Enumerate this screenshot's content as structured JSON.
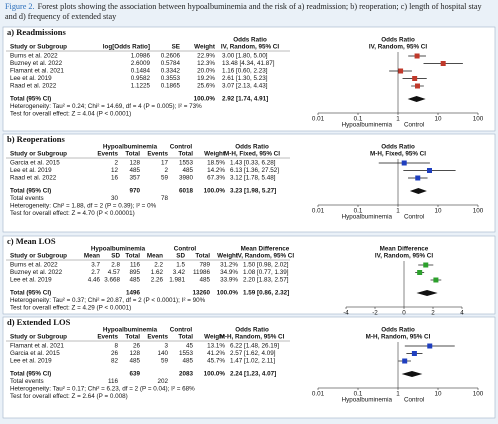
{
  "caption": {
    "label": "Figure 2.",
    "text": "Forest plots showing the association between hypoalbuminemia and the risk of a) readmission; b) reoperation; c) length of hospital stay and d) frequency of extended stay"
  },
  "panels": [
    {
      "title": "a) Readmissions",
      "color": "#c0392b",
      "headers": [
        [
          "Odds Ratio",
          "Odds Ratio"
        ],
        [
          "Study or Subgroup",
          "log[Odds Ratio]",
          "SE",
          "Weight",
          "IV, Random, 95% CI",
          "IV, Random, 95% CI"
        ]
      ],
      "rows": [
        {
          "cells": [
            "Burns et al. 2022",
            "1.0986",
            "0.2606",
            "22.9%"
          ],
          "effect": {
            "value": 3.0,
            "ci": [
              1.8,
              5.0
            ],
            "label": "3.00 [1.80, 5.00]"
          }
        },
        {
          "cells": [
            "Buzney et al. 2022",
            "2.6009",
            "0.5784",
            "12.3%"
          ],
          "effect": {
            "value": 13.48,
            "ci": [
              4.34,
              41.87
            ],
            "label": "13.48 [4.34, 41.87]"
          }
        },
        {
          "cells": [
            "Flamant et al. 2021",
            "0.1484",
            "0.3342",
            "20.0%"
          ],
          "effect": {
            "value": 1.16,
            "ci": [
              0.6,
              2.23
            ],
            "label": "1.16 [0.60, 2.23]"
          }
        },
        {
          "cells": [
            "Lee et al. 2019",
            "0.9582",
            "0.3553",
            "19.2%"
          ],
          "effect": {
            "value": 2.61,
            "ci": [
              1.3,
              5.23
            ],
            "label": "2.61 [1.30, 5.23]"
          }
        },
        {
          "cells": [
            "Raad et al. 2022",
            "1.1225",
            "0.1865",
            "25.6%"
          ],
          "effect": {
            "value": 3.07,
            "ci": [
              2.13,
              4.43
            ],
            "label": "3.07 [2.13, 4.43]"
          }
        }
      ],
      "total": {
        "cells": [
          "Total (95% CI)",
          null,
          null,
          "100.0%"
        ],
        "effect": {
          "value": 2.92,
          "ci": [
            1.74,
            4.91
          ],
          "label": "2.92 [1.74, 4.91]"
        }
      },
      "notes": [
        "Heterogeneity: Tau² = 0.24; Chi² = 14.69, df = 4 (P = 0.005); I² = 73%",
        "Test for overall effect: Z = 4.04 (P < 0.0001)"
      ],
      "axis": {
        "scale": "log",
        "xlim": [
          0.01,
          100
        ],
        "xticks": [
          0.01,
          0.1,
          1,
          10,
          100
        ],
        "null": 1,
        "labels": [
          "Hypoalbuminemia",
          "Control"
        ]
      }
    },
    {
      "title": "b) Reoperations",
      "color": "#1f3fbf",
      "headers": [
        [
          "Hypoalbuminemia",
          "Control",
          "Odds Ratio",
          "Odds Ratio"
        ],
        [
          "Study or Subgroup",
          "Events",
          "Total",
          "Events",
          "Total",
          "Weight",
          "M-H, Fixed, 95% CI",
          "M-H, Fixed, 95% CI"
        ]
      ],
      "rows": [
        {
          "cells": [
            "Garcia et al. 2015",
            "2",
            "128",
            "17",
            "1553",
            "18.5%"
          ],
          "effect": {
            "value": 1.43,
            "ci": [
              0.33,
              6.28
            ],
            "label": "1.43 [0.33, 6.28]"
          }
        },
        {
          "cells": [
            "Lee et al. 2019",
            "12",
            "485",
            "2",
            "485",
            "14.2%"
          ],
          "effect": {
            "value": 6.13,
            "ci": [
              1.36,
              27.52
            ],
            "label": "6.13 [1.36, 27.52]"
          }
        },
        {
          "cells": [
            "Raad et al. 2022",
            "16",
            "357",
            "59",
            "3980",
            "67.3%"
          ],
          "effect": {
            "value": 3.12,
            "ci": [
              1.78,
              5.48
            ],
            "label": "3.12 [1.78, 5.48]"
          }
        }
      ],
      "total": {
        "cells": [
          "Total (95% CI)",
          null,
          "970",
          null,
          "6018",
          "100.0%"
        ],
        "effect": {
          "value": 3.23,
          "ci": [
            1.98,
            5.27
          ],
          "label": "3.23 [1.98, 5.27]"
        }
      },
      "events": [
        "Total events",
        "30",
        null,
        "78"
      ],
      "notes": [
        "Heterogeneity: Chi² = 1.88, df = 2 (P = 0.39); I² = 0%",
        "Test for overall effect: Z = 4.70 (P < 0.00001)"
      ],
      "axis": {
        "scale": "log",
        "xlim": [
          0.01,
          100
        ],
        "xticks": [
          0.01,
          0.1,
          1,
          10,
          100
        ],
        "null": 1,
        "labels": [
          "Hypoalbuminemia",
          "Control"
        ]
      }
    },
    {
      "title": "c) Mean LOS",
      "color": "#2ca02c",
      "headers": [
        [
          "Hypoalbuminemia",
          "Control",
          "Mean Difference",
          "Mean Difference"
        ],
        [
          "Study or Subgroup",
          "Mean",
          "SD",
          "Total",
          "Mean",
          "SD",
          "Total",
          "Weight",
          "IV, Random, 95% CI",
          "IV, Random, 95% CI"
        ]
      ],
      "rows": [
        {
          "cells": [
            "Burns et al. 2022",
            "3.7",
            "2.8",
            "116",
            "2.2",
            "1.5",
            "789",
            "31.2%"
          ],
          "effect": {
            "value": 1.5,
            "ci": [
              0.98,
              2.02
            ],
            "label": "1.50 [0.98, 2.02]"
          }
        },
        {
          "cells": [
            "Buzney et al. 2022",
            "2.7",
            "4.57",
            "895",
            "1.62",
            "3.42",
            "11986",
            "34.9%"
          ],
          "effect": {
            "value": 1.08,
            "ci": [
              0.77,
              1.39
            ],
            "label": "1.08 [0.77, 1.39]"
          }
        },
        {
          "cells": [
            "Lee et al. 2019",
            "4.46",
            "3.668",
            "485",
            "2.26",
            "1.981",
            "485",
            "33.9%"
          ],
          "effect": {
            "value": 2.2,
            "ci": [
              1.83,
              2.57
            ],
            "label": "2.20 [1.83, 2.57]"
          }
        }
      ],
      "total": {
        "cells": [
          "Total (95% CI)",
          null,
          null,
          "1496",
          null,
          null,
          "13260",
          "100.0%"
        ],
        "effect": {
          "value": 1.59,
          "ci": [
            0.86,
            2.32
          ],
          "label": "1.59 [0.86, 2.32]"
        }
      },
      "notes": [
        "Heterogeneity: Tau² = 0.37; Chi² = 20.87, df = 2 (P < 0.0001); I² = 90%",
        "Test for overall effect: Z = 4.29 (P < 0.0001)"
      ],
      "axis": {
        "scale": "linear",
        "xlim": [
          -4,
          4
        ],
        "xticks": [
          -4,
          -2,
          0,
          2,
          4
        ],
        "null": 0
      }
    },
    {
      "title": "d) Extended LOS",
      "color": "#1f3fbf",
      "headers": [
        [
          "Hypoalbuminemia",
          "Control",
          "Odds Ratio",
          "Odds Ratio"
        ],
        [
          "Study or Subgroup",
          "Events",
          "Total",
          "Events",
          "Total",
          "Weight",
          "M-H, Random, 95% CI",
          "M-H, Random, 95% CI"
        ]
      ],
      "rows": [
        {
          "cells": [
            "Flamant et al. 2021",
            "8",
            "26",
            "3",
            "45",
            "13.1%"
          ],
          "effect": {
            "value": 6.22,
            "ci": [
              1.48,
              26.19
            ],
            "label": "6.22 [1.48, 26.19]"
          }
        },
        {
          "cells": [
            "Garcia et al. 2015",
            "26",
            "128",
            "140",
            "1553",
            "41.2%"
          ],
          "effect": {
            "value": 2.57,
            "ci": [
              1.62,
              4.09
            ],
            "label": "2.57 [1.62, 4.09]"
          }
        },
        {
          "cells": [
            "Lee et al. 2019",
            "82",
            "485",
            "59",
            "485",
            "45.7%"
          ],
          "effect": {
            "value": 1.47,
            "ci": [
              1.02,
              2.11
            ],
            "label": "1.47 [1.02, 2.11]"
          }
        }
      ],
      "total": {
        "cells": [
          "Total (95% CI)",
          null,
          "639",
          null,
          "2083",
          "100.0%"
        ],
        "effect": {
          "value": 2.24,
          "ci": [
            1.23,
            4.07
          ],
          "label": "2.24 [1.23, 4.07]"
        }
      },
      "events": [
        "Total events",
        "116",
        null,
        "202"
      ],
      "notes": [
        "Heterogeneity: Tau² = 0.17; Chi² = 6.23, df = 2 (P = 0.04); I² = 68%",
        "Test for overall effect: Z = 2.64 (P = 0.008)"
      ],
      "axis": {
        "scale": "log",
        "xlim": [
          0.01,
          100
        ],
        "xticks": [
          0.01,
          0.1,
          1,
          10,
          100
        ],
        "null": 1,
        "labels": [
          "Hypoalbuminemia",
          "Control"
        ]
      }
    }
  ]
}
